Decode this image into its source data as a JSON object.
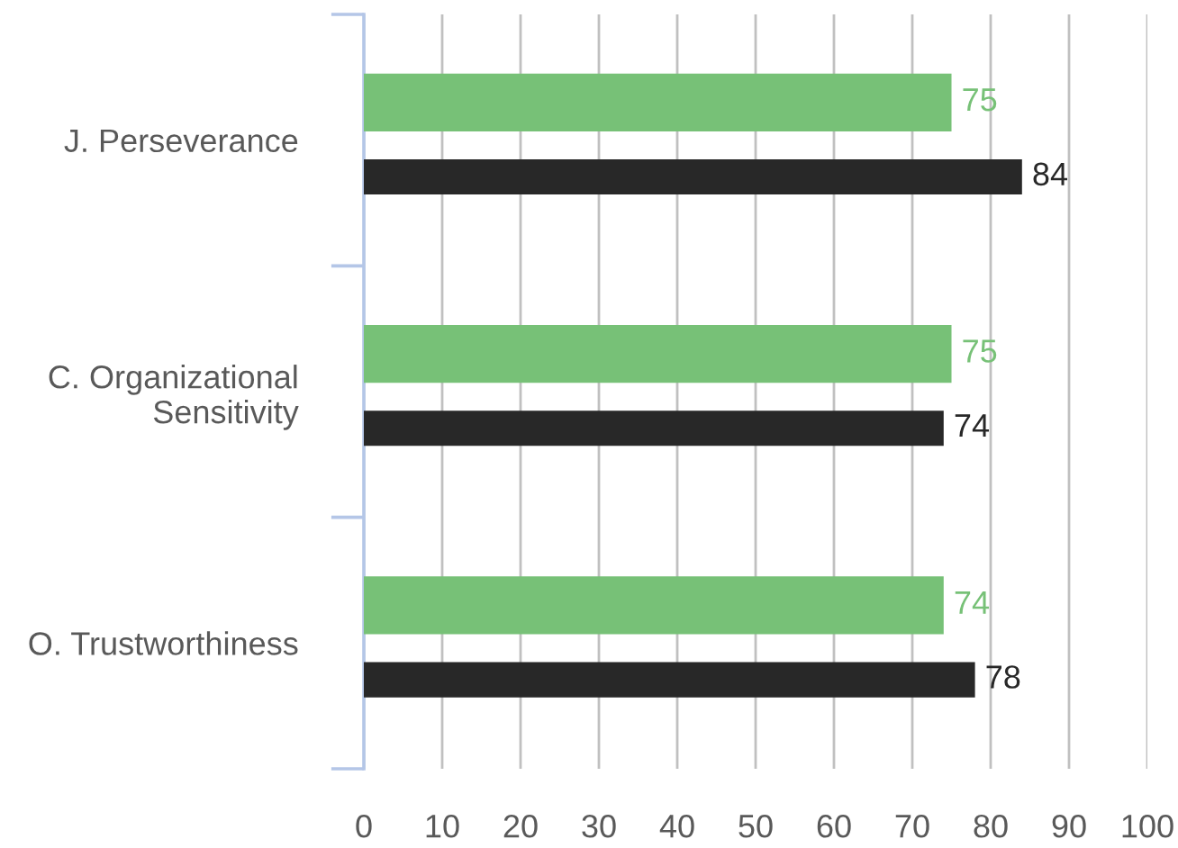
{
  "chart_data": {
    "type": "bar",
    "orientation": "horizontal",
    "categories": [
      "J. Perseverance",
      "C. Organizational\nSensitivity",
      "O. Trustworthiness"
    ],
    "series": [
      {
        "color": "#77c177",
        "values": [
          75,
          75,
          74
        ]
      },
      {
        "color": "#282828",
        "values": [
          84,
          74,
          78
        ]
      }
    ],
    "xlim": [
      0,
      100
    ],
    "xticks": [
      0,
      10,
      20,
      30,
      40,
      50,
      60,
      70,
      80,
      90,
      100
    ],
    "grid": "x",
    "data_labels": true
  }
}
